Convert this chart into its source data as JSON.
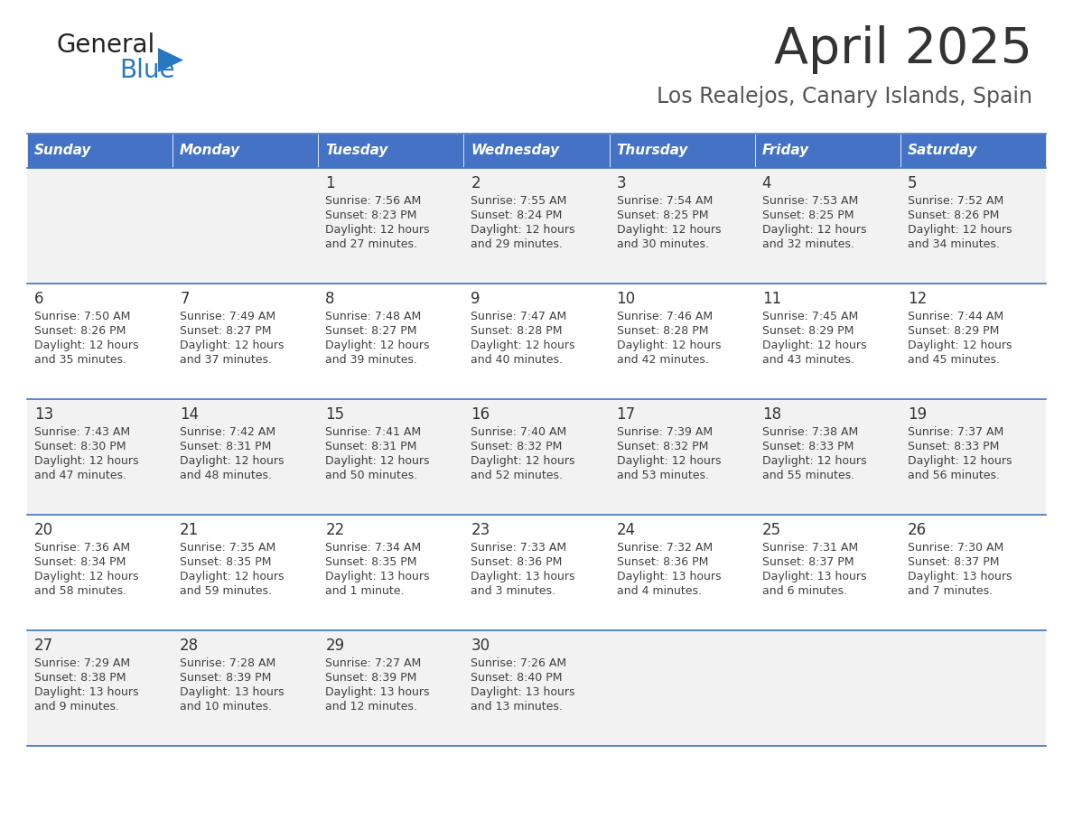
{
  "title": "April 2025",
  "subtitle": "Los Realejos, Canary Islands, Spain",
  "days_of_week": [
    "Sunday",
    "Monday",
    "Tuesday",
    "Wednesday",
    "Thursday",
    "Friday",
    "Saturday"
  ],
  "header_bg": "#4472C4",
  "header_text": "#FFFFFF",
  "row_bg_odd": "#F2F2F2",
  "row_bg_even": "#FFFFFF",
  "cell_text_color": "#404040",
  "day_num_color": "#333333",
  "divider_color": "#4472C4",
  "logo_general_color": "#222222",
  "logo_blue_color": "#2878C0",
  "logo_triangle_color": "#2878C0",
  "title_color": "#333333",
  "subtitle_color": "#555555",
  "calendar_data": [
    [
      {
        "day": null
      },
      {
        "day": null
      },
      {
        "day": 1,
        "sunrise": "7:56 AM",
        "sunset": "8:23 PM",
        "daylight": "12 hours",
        "daylight2": "and 27 minutes."
      },
      {
        "day": 2,
        "sunrise": "7:55 AM",
        "sunset": "8:24 PM",
        "daylight": "12 hours",
        "daylight2": "and 29 minutes."
      },
      {
        "day": 3,
        "sunrise": "7:54 AM",
        "sunset": "8:25 PM",
        "daylight": "12 hours",
        "daylight2": "and 30 minutes."
      },
      {
        "day": 4,
        "sunrise": "7:53 AM",
        "sunset": "8:25 PM",
        "daylight": "12 hours",
        "daylight2": "and 32 minutes."
      },
      {
        "day": 5,
        "sunrise": "7:52 AM",
        "sunset": "8:26 PM",
        "daylight": "12 hours",
        "daylight2": "and 34 minutes."
      }
    ],
    [
      {
        "day": 6,
        "sunrise": "7:50 AM",
        "sunset": "8:26 PM",
        "daylight": "12 hours",
        "daylight2": "and 35 minutes."
      },
      {
        "day": 7,
        "sunrise": "7:49 AM",
        "sunset": "8:27 PM",
        "daylight": "12 hours",
        "daylight2": "and 37 minutes."
      },
      {
        "day": 8,
        "sunrise": "7:48 AM",
        "sunset": "8:27 PM",
        "daylight": "12 hours",
        "daylight2": "and 39 minutes."
      },
      {
        "day": 9,
        "sunrise": "7:47 AM",
        "sunset": "8:28 PM",
        "daylight": "12 hours",
        "daylight2": "and 40 minutes."
      },
      {
        "day": 10,
        "sunrise": "7:46 AM",
        "sunset": "8:28 PM",
        "daylight": "12 hours",
        "daylight2": "and 42 minutes."
      },
      {
        "day": 11,
        "sunrise": "7:45 AM",
        "sunset": "8:29 PM",
        "daylight": "12 hours",
        "daylight2": "and 43 minutes."
      },
      {
        "day": 12,
        "sunrise": "7:44 AM",
        "sunset": "8:29 PM",
        "daylight": "12 hours",
        "daylight2": "and 45 minutes."
      }
    ],
    [
      {
        "day": 13,
        "sunrise": "7:43 AM",
        "sunset": "8:30 PM",
        "daylight": "12 hours",
        "daylight2": "and 47 minutes."
      },
      {
        "day": 14,
        "sunrise": "7:42 AM",
        "sunset": "8:31 PM",
        "daylight": "12 hours",
        "daylight2": "and 48 minutes."
      },
      {
        "day": 15,
        "sunrise": "7:41 AM",
        "sunset": "8:31 PM",
        "daylight": "12 hours",
        "daylight2": "and 50 minutes."
      },
      {
        "day": 16,
        "sunrise": "7:40 AM",
        "sunset": "8:32 PM",
        "daylight": "12 hours",
        "daylight2": "and 52 minutes."
      },
      {
        "day": 17,
        "sunrise": "7:39 AM",
        "sunset": "8:32 PM",
        "daylight": "12 hours",
        "daylight2": "and 53 minutes."
      },
      {
        "day": 18,
        "sunrise": "7:38 AM",
        "sunset": "8:33 PM",
        "daylight": "12 hours",
        "daylight2": "and 55 minutes."
      },
      {
        "day": 19,
        "sunrise": "7:37 AM",
        "sunset": "8:33 PM",
        "daylight": "12 hours",
        "daylight2": "and 56 minutes."
      }
    ],
    [
      {
        "day": 20,
        "sunrise": "7:36 AM",
        "sunset": "8:34 PM",
        "daylight": "12 hours",
        "daylight2": "and 58 minutes."
      },
      {
        "day": 21,
        "sunrise": "7:35 AM",
        "sunset": "8:35 PM",
        "daylight": "12 hours",
        "daylight2": "and 59 minutes."
      },
      {
        "day": 22,
        "sunrise": "7:34 AM",
        "sunset": "8:35 PM",
        "daylight": "13 hours",
        "daylight2": "and 1 minute."
      },
      {
        "day": 23,
        "sunrise": "7:33 AM",
        "sunset": "8:36 PM",
        "daylight": "13 hours",
        "daylight2": "and 3 minutes."
      },
      {
        "day": 24,
        "sunrise": "7:32 AM",
        "sunset": "8:36 PM",
        "daylight": "13 hours",
        "daylight2": "and 4 minutes."
      },
      {
        "day": 25,
        "sunrise": "7:31 AM",
        "sunset": "8:37 PM",
        "daylight": "13 hours",
        "daylight2": "and 6 minutes."
      },
      {
        "day": 26,
        "sunrise": "7:30 AM",
        "sunset": "8:37 PM",
        "daylight": "13 hours",
        "daylight2": "and 7 minutes."
      }
    ],
    [
      {
        "day": 27,
        "sunrise": "7:29 AM",
        "sunset": "8:38 PM",
        "daylight": "13 hours",
        "daylight2": "and 9 minutes."
      },
      {
        "day": 28,
        "sunrise": "7:28 AM",
        "sunset": "8:39 PM",
        "daylight": "13 hours",
        "daylight2": "and 10 minutes."
      },
      {
        "day": 29,
        "sunrise": "7:27 AM",
        "sunset": "8:39 PM",
        "daylight": "13 hours",
        "daylight2": "and 12 minutes."
      },
      {
        "day": 30,
        "sunrise": "7:26 AM",
        "sunset": "8:40 PM",
        "daylight": "13 hours",
        "daylight2": "and 13 minutes."
      },
      {
        "day": null
      },
      {
        "day": null
      },
      {
        "day": null
      }
    ]
  ]
}
